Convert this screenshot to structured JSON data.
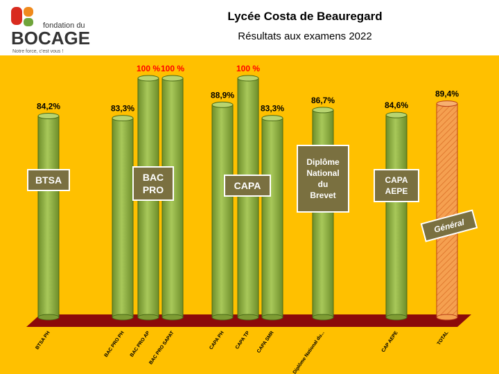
{
  "header": {
    "title": "Lycée Costa de Beauregard",
    "subtitle": "Résultats aux examens 2022",
    "logo_small": "fondation du",
    "logo_big": "BOCAGE",
    "logo_tagline": "Notre force, c'est vous !"
  },
  "colors": {
    "background": "#FFC000",
    "bar_green": "#92B040",
    "bar_total": "#F5A050",
    "floor": "#8B0A0A",
    "label_box": "#7A7040",
    "value_red": "#FF0000",
    "logo_red": "#D92B1F"
  },
  "group_labels": [
    "BTSA",
    "BAC PRO",
    "CAPA",
    "Diplôme National du Brevet",
    "CAPA AEPE",
    "Général"
  ],
  "chart_data": {
    "type": "bar",
    "title": "Résultats aux examens 2022",
    "categories": [
      "BTSA PH",
      "BAC PRO PH",
      "BAC PRO AP",
      "BAC PRO SAPAT",
      "CAPA PH",
      "CAPA TP",
      "CAPA SMR",
      "Diplôme National du...",
      "CAP AEPE",
      "TOTAL"
    ],
    "values": [
      84.2,
      83.3,
      100,
      100,
      88.9,
      100,
      83.3,
      86.7,
      84.6,
      89.4
    ],
    "value_labels": [
      "84,2%",
      "83,3%",
      "100 %",
      "100 %",
      "88,9%",
      "100 %",
      "83,3%",
      "86,7%",
      "84,6%",
      "89,4%"
    ],
    "ylim": [
      0,
      100
    ],
    "xlabel": "",
    "ylabel": "",
    "grid": false,
    "legend": "none"
  }
}
